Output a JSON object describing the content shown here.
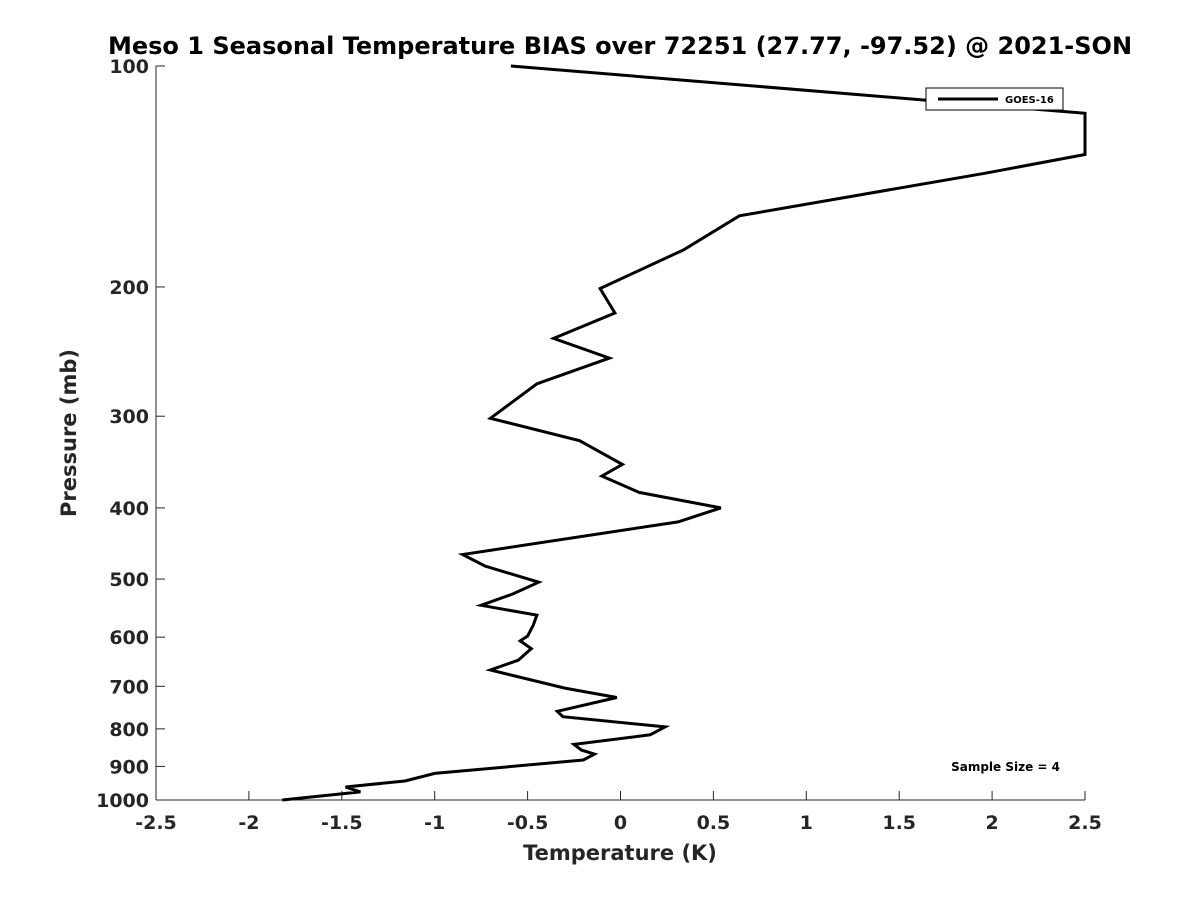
{
  "chart_data": {
    "type": "line",
    "title": "Meso 1 Seasonal Temperature BIAS over 72251 (27.77, -97.52) @ 2021-SON",
    "xlabel": "Temperature (K)",
    "ylabel": "Pressure (mb)",
    "xlim": [
      -2.5,
      2.5
    ],
    "ylim": [
      100,
      1000
    ],
    "y_scale": "log",
    "y_reversed": true,
    "x_ticks": [
      -2.5,
      -2,
      -1.5,
      -1,
      -0.5,
      0,
      0.5,
      1,
      1.5,
      2,
      2.5
    ],
    "x_tick_labels": [
      "-2.5",
      "-2",
      "-1.5",
      "-1",
      "-0.5",
      "0",
      "0.5",
      "1",
      "1.5",
      "2",
      "2.5"
    ],
    "y_ticks": [
      100,
      200,
      300,
      400,
      500,
      600,
      700,
      800,
      900,
      1000
    ],
    "y_tick_labels": [
      "100",
      "200",
      "300",
      "400",
      "500",
      "600",
      "700",
      "800",
      "900",
      "1000"
    ],
    "legend": {
      "position": "top-right",
      "entries": [
        "GOES-16"
      ]
    },
    "annotation": "Sample Size = 4",
    "line_color": "#000000",
    "series": [
      {
        "name": "GOES-16",
        "points": [
          [
            -1.82,
            1000
          ],
          [
            -1.4,
            975
          ],
          [
            -1.48,
            960
          ],
          [
            -1.16,
            942
          ],
          [
            -1.0,
            920
          ],
          [
            -0.2,
            882
          ],
          [
            -0.14,
            866
          ],
          [
            -0.21,
            855
          ],
          [
            -0.25,
            840
          ],
          [
            0.16,
            815
          ],
          [
            0.24,
            795
          ],
          [
            -0.31,
            770
          ],
          [
            -0.34,
            757
          ],
          [
            -0.02,
            725
          ],
          [
            -0.3,
            704
          ],
          [
            -0.7,
            665
          ],
          [
            -0.55,
            645
          ],
          [
            -0.48,
            622
          ],
          [
            -0.54,
            607
          ],
          [
            -0.5,
            598
          ],
          [
            -0.47,
            578
          ],
          [
            -0.45,
            560
          ],
          [
            -0.75,
            543
          ],
          [
            -0.58,
            524
          ],
          [
            -0.44,
            505
          ],
          [
            -0.73,
            480
          ],
          [
            -0.85,
            463
          ],
          [
            0.31,
            418
          ],
          [
            0.54,
            400
          ],
          [
            0.1,
            381
          ],
          [
            -0.1,
            362
          ],
          [
            0.01,
            349
          ],
          [
            -0.22,
            324
          ],
          [
            -0.7,
            302
          ],
          [
            -0.45,
            271
          ],
          [
            -0.06,
            250
          ],
          [
            -0.36,
            235
          ],
          [
            -0.03,
            217
          ],
          [
            -0.11,
            201
          ],
          [
            0.34,
            178
          ],
          [
            0.64,
            160
          ],
          [
            1.96,
            140
          ],
          [
            2.5,
            132
          ],
          [
            2.5,
            116
          ],
          [
            -0.59,
            100
          ]
        ]
      }
    ]
  }
}
